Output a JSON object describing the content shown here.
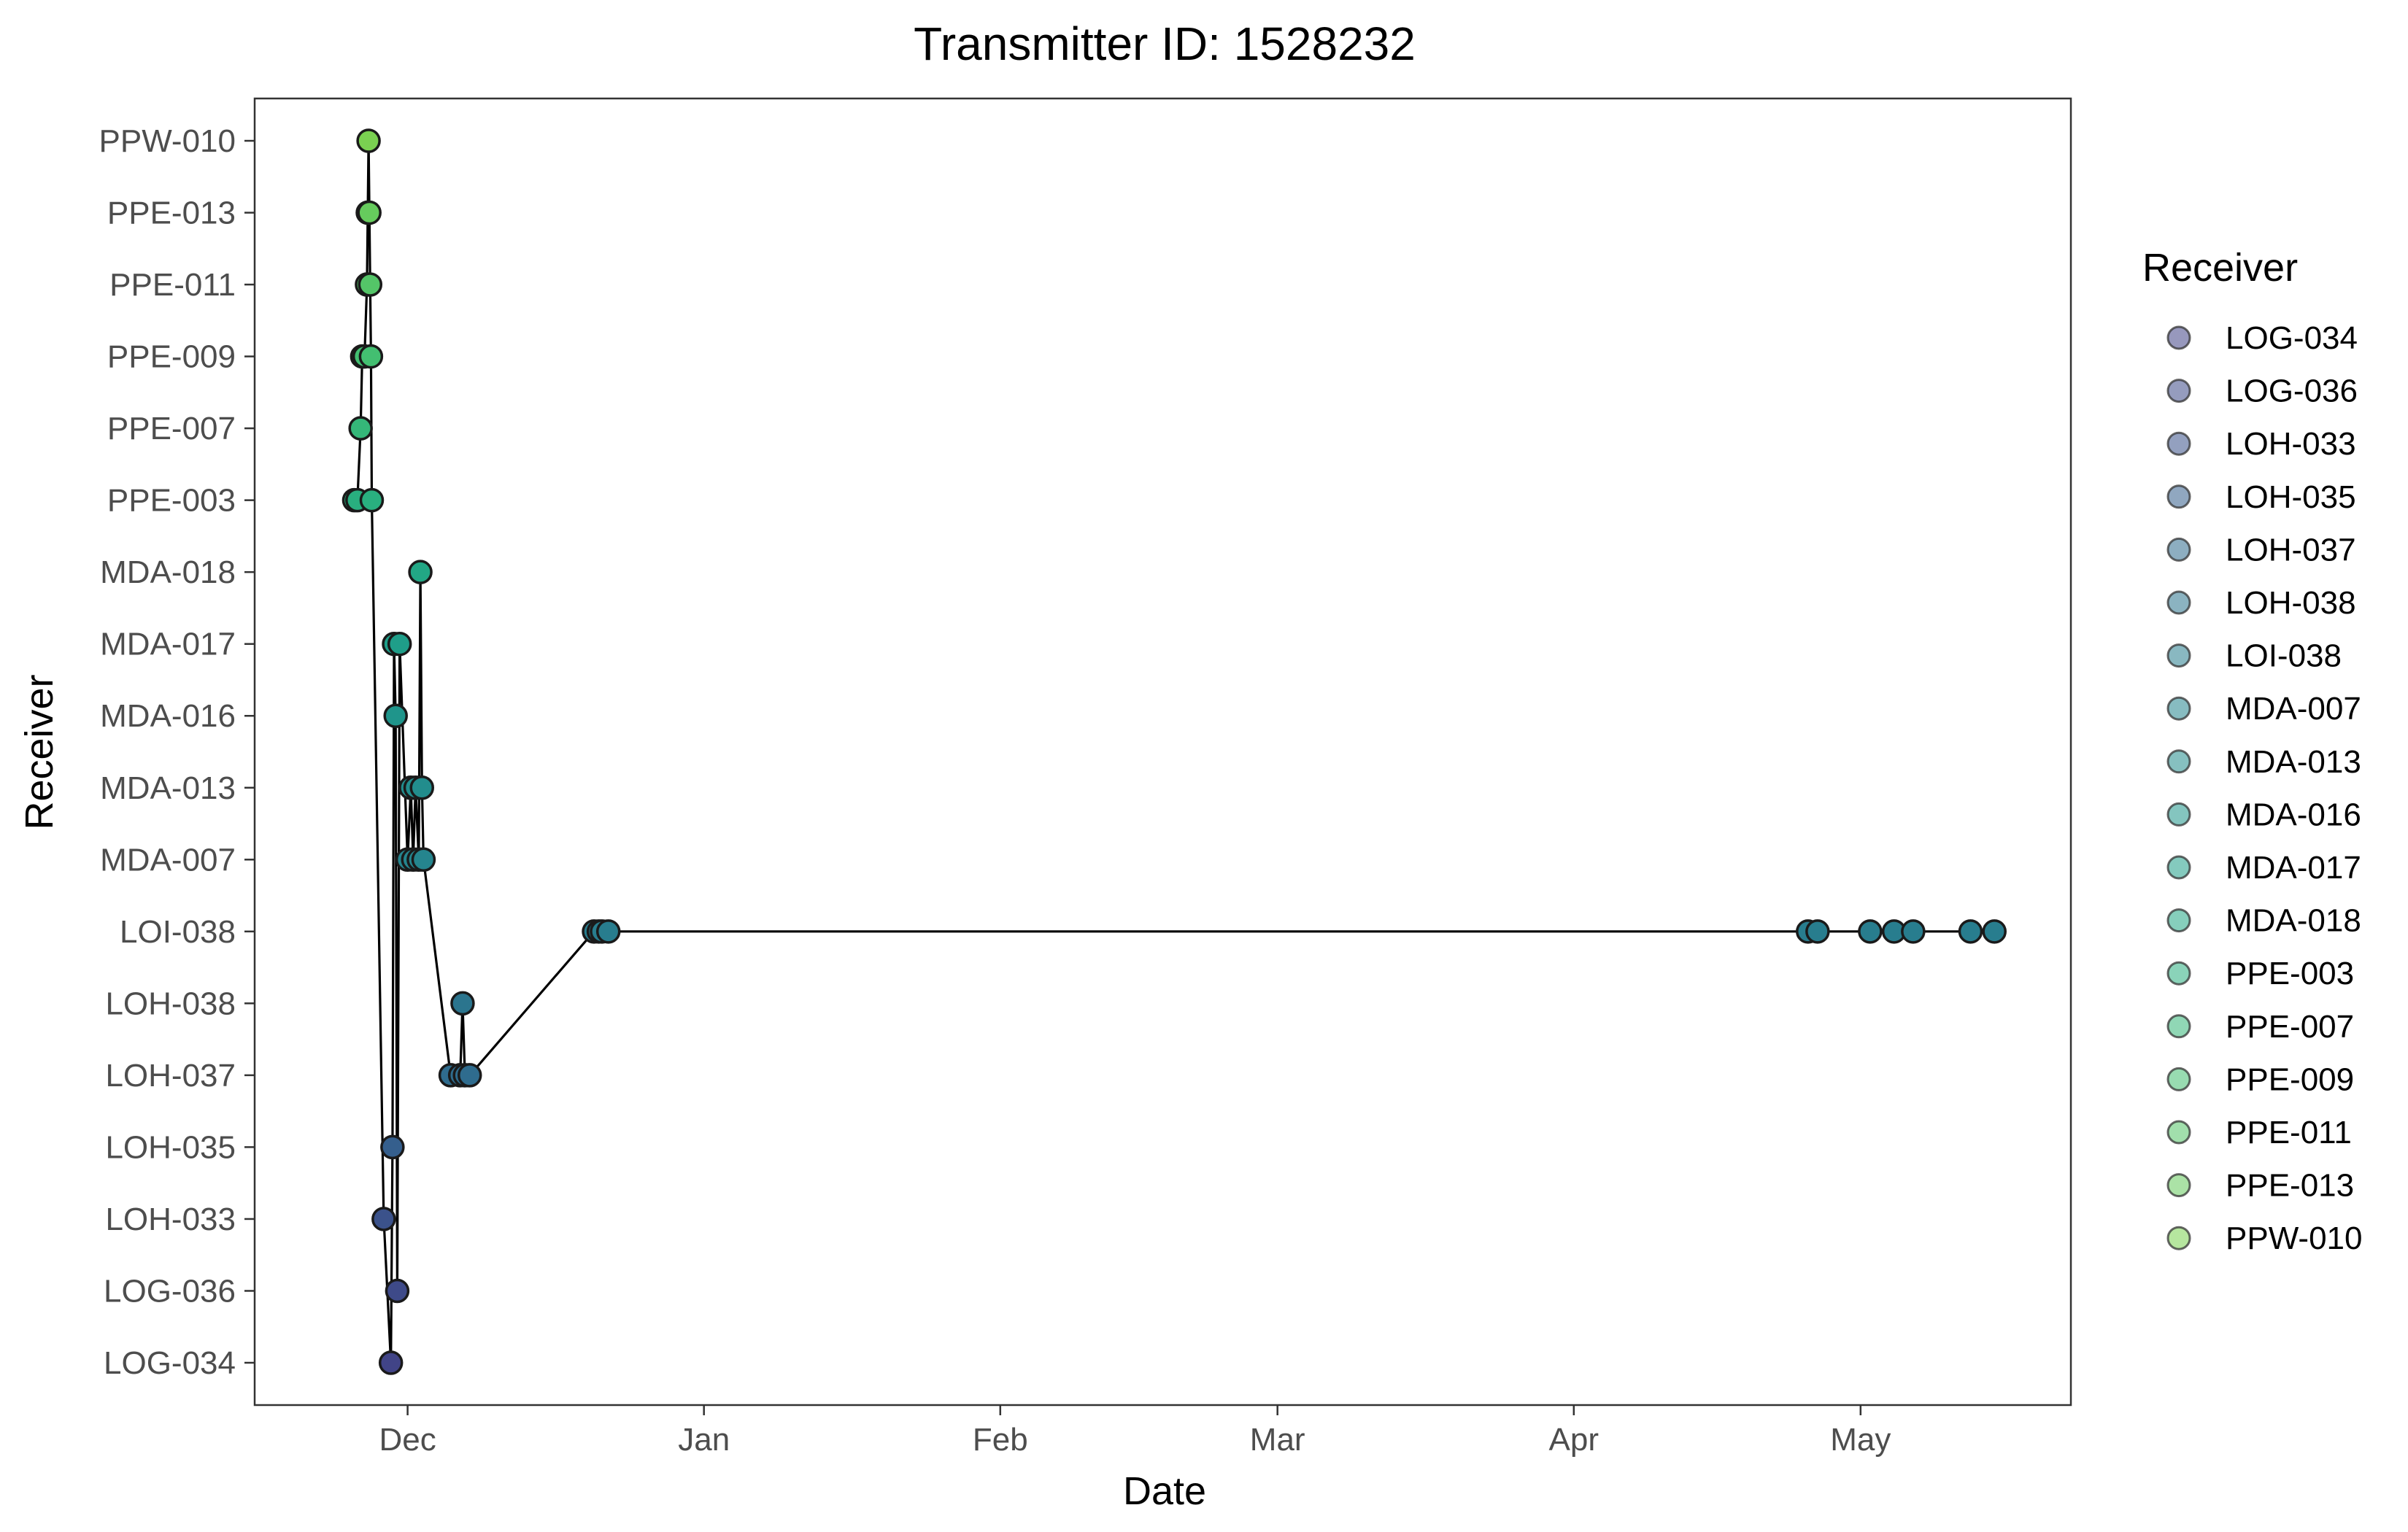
{
  "chart_data": {
    "type": "scatter",
    "title": "Transmitter ID: 1528232",
    "xlabel": "Date",
    "ylabel": "Receiver",
    "x_ticks": [
      {
        "label": "Dec",
        "date": "2023-12-01"
      },
      {
        "label": "Jan",
        "date": "2024-01-01"
      },
      {
        "label": "Feb",
        "date": "2024-02-01"
      },
      {
        "label": "Mar",
        "date": "2024-03-01"
      },
      {
        "label": "Apr",
        "date": "2024-04-01"
      },
      {
        "label": "May",
        "date": "2024-05-01"
      }
    ],
    "xlim": [
      "2023-11-15",
      "2024-05-23"
    ],
    "categories": [
      "LOG-034",
      "LOG-036",
      "LOH-033",
      "LOH-035",
      "LOH-037",
      "LOH-038",
      "LOI-038",
      "MDA-007",
      "MDA-013",
      "MDA-016",
      "MDA-017",
      "MDA-018",
      "PPE-003",
      "PPE-007",
      "PPE-009",
      "PPE-011",
      "PPE-013",
      "PPW-010"
    ],
    "legend_title": "Receiver",
    "legend_position": "right",
    "grid": false,
    "connect_points": true,
    "colors": {
      "LOG-034": "#414487",
      "LOG-036": "#3e4a89",
      "LOH-033": "#3b528b",
      "LOH-035": "#355f8d",
      "LOH-037": "#2f6c8e",
      "LOH-038": "#2b758e",
      "LOI-038": "#287d8e",
      "MDA-007": "#25858e",
      "MDA-013": "#228d8d",
      "MDA-016": "#1f958b",
      "MDA-017": "#1f9e89",
      "MDA-018": "#22a785",
      "PPE-003": "#29af7f",
      "PPE-007": "#35b779",
      "PPE-009": "#43bf71",
      "PPE-011": "#54c568",
      "PPE-013": "#66cb5d",
      "PPW-010": "#7ad151",
      "line": "#000000",
      "point_outline": "#1a1a1a"
    },
    "points": [
      {
        "x": "2023-11-25T10:00",
        "y": "PPE-003"
      },
      {
        "x": "2023-11-25T18:00",
        "y": "PPE-003"
      },
      {
        "x": "2023-11-26T02:00",
        "y": "PPE-007"
      },
      {
        "x": "2023-11-26T06:00",
        "y": "PPE-009"
      },
      {
        "x": "2023-11-26T12:00",
        "y": "PPE-009"
      },
      {
        "x": "2023-11-26T18:00",
        "y": "PPE-011"
      },
      {
        "x": "2023-11-26T20:00",
        "y": "PPE-013"
      },
      {
        "x": "2023-11-26T22:00",
        "y": "PPW-010"
      },
      {
        "x": "2023-11-27T00:00",
        "y": "PPE-013"
      },
      {
        "x": "2023-11-27T02:00",
        "y": "PPE-011"
      },
      {
        "x": "2023-11-27T04:00",
        "y": "PPE-009"
      },
      {
        "x": "2023-11-27T06:00",
        "y": "PPE-003"
      },
      {
        "x": "2023-11-28T12:00",
        "y": "LOH-033"
      },
      {
        "x": "2023-11-29T06:00",
        "y": "LOG-034"
      },
      {
        "x": "2023-11-29T10:00",
        "y": "LOH-035"
      },
      {
        "x": "2023-11-29T14:00",
        "y": "MDA-017"
      },
      {
        "x": "2023-11-29T18:00",
        "y": "MDA-016"
      },
      {
        "x": "2023-11-29T22:00",
        "y": "LOG-036"
      },
      {
        "x": "2023-11-30T04:00",
        "y": "MDA-017"
      },
      {
        "x": "2023-12-01T00:00",
        "y": "MDA-007"
      },
      {
        "x": "2023-12-01T08:00",
        "y": "MDA-013"
      },
      {
        "x": "2023-12-01T14:00",
        "y": "MDA-007"
      },
      {
        "x": "2023-12-01T20:00",
        "y": "MDA-013"
      },
      {
        "x": "2023-12-02T04:00",
        "y": "MDA-007"
      },
      {
        "x": "2023-12-02T08:00",
        "y": "MDA-018"
      },
      {
        "x": "2023-12-02T12:00",
        "y": "MDA-013"
      },
      {
        "x": "2023-12-02T16:00",
        "y": "MDA-007"
      },
      {
        "x": "2023-12-05T12:00",
        "y": "LOH-037"
      },
      {
        "x": "2023-12-06T12:00",
        "y": "LOH-037"
      },
      {
        "x": "2023-12-06T18:00",
        "y": "LOH-038"
      },
      {
        "x": "2023-12-07T00:00",
        "y": "LOH-037"
      },
      {
        "x": "2023-12-07T12:00",
        "y": "LOH-037"
      },
      {
        "x": "2023-12-20T12:00",
        "y": "LOI-038"
      },
      {
        "x": "2023-12-21T00:00",
        "y": "LOI-038"
      },
      {
        "x": "2023-12-21T08:00",
        "y": "LOI-038"
      },
      {
        "x": "2023-12-22T00:00",
        "y": "LOI-038"
      },
      {
        "x": "2024-04-25T12:00",
        "y": "LOI-038"
      },
      {
        "x": "2024-04-26T12:00",
        "y": "LOI-038"
      },
      {
        "x": "2024-05-02T00:00",
        "y": "LOI-038"
      },
      {
        "x": "2024-05-04T12:00",
        "y": "LOI-038"
      },
      {
        "x": "2024-05-06T12:00",
        "y": "LOI-038"
      },
      {
        "x": "2024-05-12T12:00",
        "y": "LOI-038"
      },
      {
        "x": "2024-05-15T00:00",
        "y": "LOI-038"
      }
    ]
  }
}
